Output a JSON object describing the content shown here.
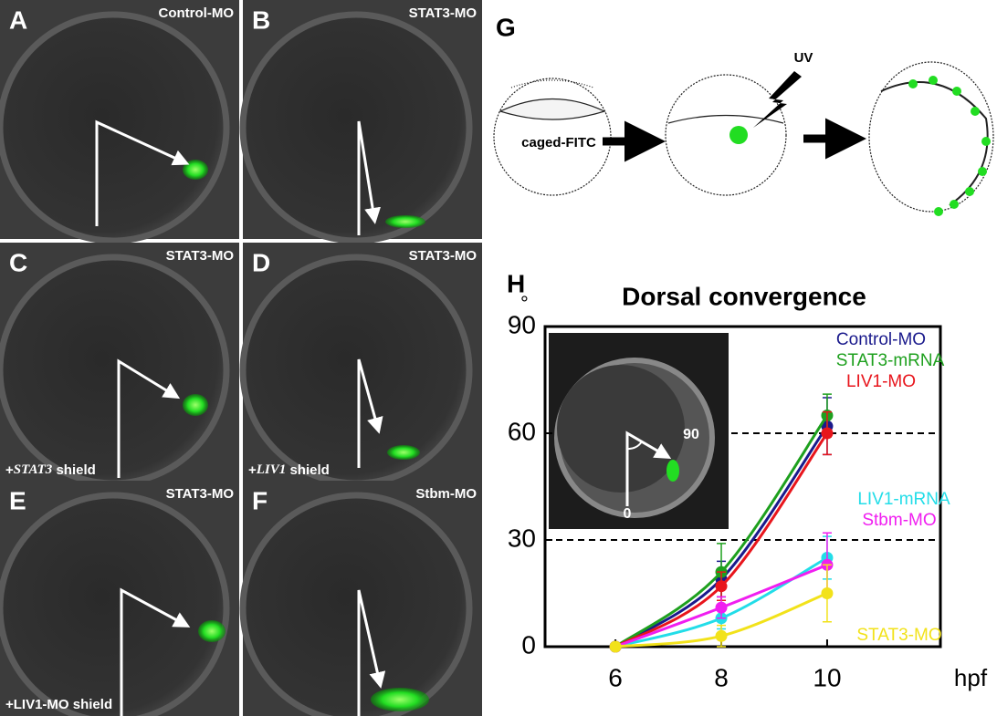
{
  "panels": [
    {
      "letter": "A",
      "label": "Control-MO"
    },
    {
      "letter": "B",
      "label": "STAT3-MO"
    },
    {
      "letter": "C",
      "label": "STAT3-MO",
      "caption": [
        "+",
        "STAT3",
        " shield"
      ]
    },
    {
      "letter": "D",
      "label": "STAT3-MO",
      "caption": [
        "+",
        "LIV1",
        " shield"
      ]
    },
    {
      "letter": "E",
      "label": "STAT3-MO",
      "caption": [
        "+LIV1-MO shield"
      ]
    },
    {
      "letter": "F",
      "label": "Stbm-MO"
    }
  ],
  "diagram": {
    "letter": "G",
    "labels": [
      "caged-FITC",
      "UV"
    ]
  },
  "chart_data": {
    "type": "line",
    "letter": "H",
    "title": "Dorsal convergence",
    "y_label": "°",
    "x_label": "hpf",
    "x": [
      6,
      8,
      10
    ],
    "xlim": [
      4.67,
      12.14
    ],
    "xticks": [
      6,
      8,
      10
    ],
    "ylim": [
      0,
      90
    ],
    "yticks": [
      0,
      30,
      60,
      90
    ],
    "reference_lines": [
      30,
      60
    ],
    "inset": {
      "labels": [
        "90",
        "0"
      ]
    },
    "series": [
      {
        "name": "Control-MO",
        "color": "#1a1a8c",
        "values": [
          0,
          19,
          62
        ],
        "errors": [
          0,
          5,
          8
        ]
      },
      {
        "name": "STAT3-mRNA",
        "color": "#1ea01e",
        "values": [
          0,
          21,
          65
        ],
        "errors": [
          0,
          8,
          6
        ]
      },
      {
        "name": "LIV1-MO",
        "color": "#e8151c",
        "values": [
          0,
          17,
          60
        ],
        "errors": [
          0,
          4,
          6
        ]
      },
      {
        "name": "LIV1-mRNA",
        "color": "#22dde8",
        "values": [
          0,
          8,
          25
        ],
        "errors": [
          0,
          3,
          6
        ]
      },
      {
        "name": "Stbm-MO",
        "color": "#f01ef0",
        "values": [
          0,
          11,
          23
        ],
        "errors": [
          0,
          3,
          9
        ]
      },
      {
        "name": "STAT3-MO",
        "color": "#f2e21a",
        "values": [
          0,
          3,
          15
        ],
        "errors": [
          0,
          3,
          8
        ]
      }
    ]
  }
}
